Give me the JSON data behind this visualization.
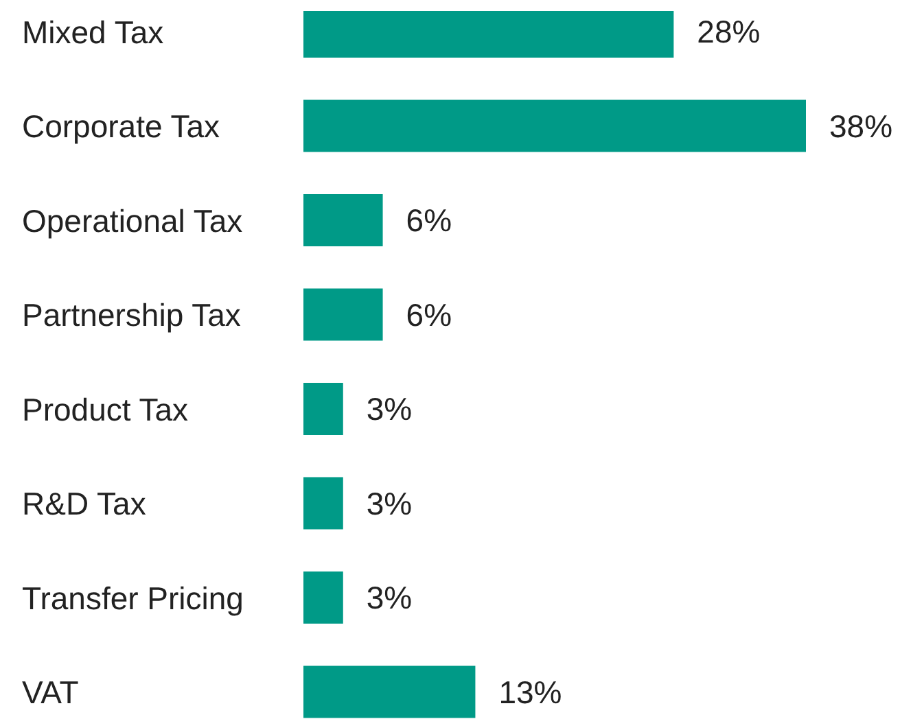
{
  "chart_data": {
    "type": "bar",
    "orientation": "horizontal",
    "categories": [
      "Mixed Tax",
      "Corporate Tax",
      "Operational Tax",
      "Partnership Tax",
      "Product Tax",
      "R&D Tax",
      "Transfer Pricing",
      "VAT"
    ],
    "values": [
      28,
      38,
      6,
      6,
      3,
      3,
      3,
      13
    ],
    "value_labels": [
      "28%",
      "38%",
      "6%",
      "6%",
      "3%",
      "3%",
      "3%",
      "13%"
    ],
    "color": "#009a87"
  }
}
